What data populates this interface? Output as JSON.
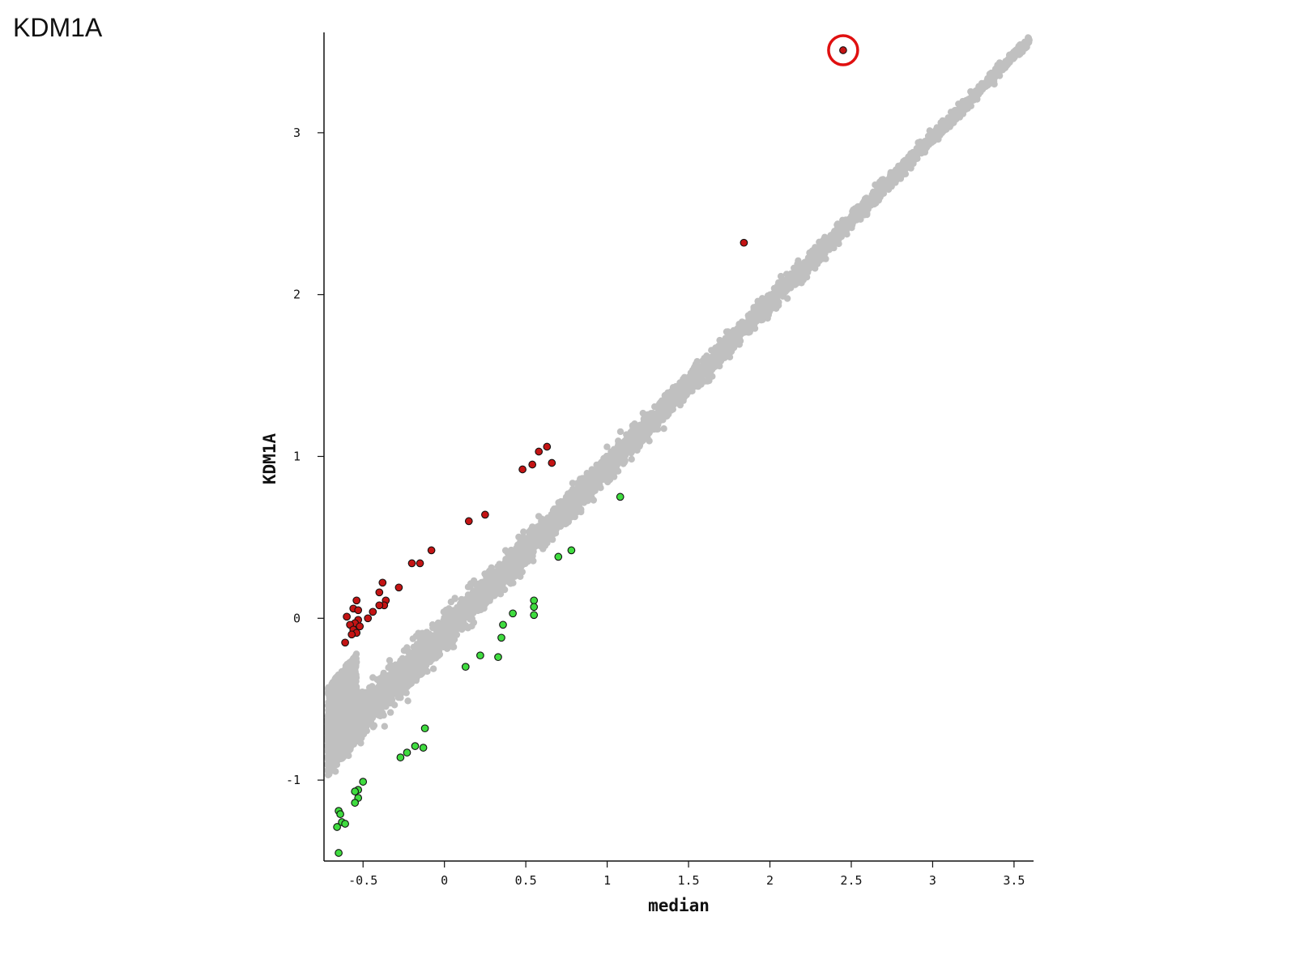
{
  "page": {
    "title": "KDM1A"
  },
  "chart_data": {
    "type": "scatter",
    "title": "",
    "xlabel": "median",
    "ylabel": "KDM1A",
    "xlim": [
      -0.74,
      3.62
    ],
    "ylim": [
      -1.5,
      3.62
    ],
    "x_ticks": [
      -0.5,
      0,
      0.5,
      1,
      1.5,
      2,
      2.5,
      3,
      3.5
    ],
    "x_tick_labels": [
      "-0.5",
      "0",
      "0.5",
      "1",
      "1.5",
      "2",
      "2.5",
      "3",
      "3.5"
    ],
    "y_ticks": [
      -1,
      0,
      1,
      2,
      3
    ],
    "y_tick_labels": [
      "-1",
      "0",
      "1",
      "2",
      "3"
    ],
    "grid": false,
    "legend": "none",
    "colors": {
      "background_points": "#c0c0c0",
      "up_points": "#c41414",
      "down_points": "#3fdc3f",
      "point_outline": "#111111",
      "highlight_circle": "#e01010"
    },
    "background_cloud": {
      "description_shown": "dense grey band of points along diagonal",
      "trend_start": [
        -0.7,
        -0.8
      ],
      "trend_end": [
        3.6,
        3.58
      ],
      "point_count": 5200
    },
    "series": [
      {
        "color_role": "up_points",
        "points": [
          [
            2.45,
            3.51
          ],
          [
            1.84,
            2.32
          ],
          [
            0.63,
            1.06
          ],
          [
            0.58,
            1.03
          ],
          [
            0.54,
            0.95
          ],
          [
            0.66,
            0.96
          ],
          [
            0.48,
            0.92
          ],
          [
            0.25,
            0.64
          ],
          [
            0.15,
            0.6
          ],
          [
            -0.08,
            0.42
          ],
          [
            -0.15,
            0.34
          ],
          [
            -0.2,
            0.34
          ],
          [
            -0.28,
            0.19
          ],
          [
            -0.38,
            0.22
          ],
          [
            -0.4,
            0.16
          ],
          [
            -0.36,
            0.11
          ],
          [
            -0.37,
            0.08
          ],
          [
            -0.4,
            0.08
          ],
          [
            -0.44,
            0.04
          ],
          [
            -0.47,
            0.0
          ],
          [
            -0.54,
            0.11
          ],
          [
            -0.56,
            0.06
          ],
          [
            -0.53,
            0.05
          ],
          [
            -0.6,
            0.01
          ],
          [
            -0.53,
            -0.01
          ],
          [
            -0.55,
            -0.03
          ],
          [
            -0.58,
            -0.04
          ],
          [
            -0.52,
            -0.05
          ],
          [
            -0.56,
            -0.07
          ],
          [
            -0.54,
            -0.09
          ],
          [
            -0.57,
            -0.1
          ],
          [
            -0.61,
            -0.15
          ]
        ]
      },
      {
        "color_role": "down_points",
        "points": [
          [
            1.08,
            0.75
          ],
          [
            0.78,
            0.42
          ],
          [
            0.7,
            0.38
          ],
          [
            0.55,
            0.11
          ],
          [
            0.55,
            0.07
          ],
          [
            0.55,
            0.02
          ],
          [
            0.42,
            0.03
          ],
          [
            0.36,
            -0.04
          ],
          [
            0.35,
            -0.12
          ],
          [
            0.33,
            -0.24
          ],
          [
            0.22,
            -0.23
          ],
          [
            0.13,
            -0.3
          ],
          [
            -0.12,
            -0.68
          ],
          [
            -0.13,
            -0.8
          ],
          [
            -0.18,
            -0.79
          ],
          [
            -0.23,
            -0.83
          ],
          [
            -0.27,
            -0.86
          ],
          [
            -0.5,
            -1.01
          ],
          [
            -0.53,
            -1.06
          ],
          [
            -0.55,
            -1.07
          ],
          [
            -0.53,
            -1.11
          ],
          [
            -0.55,
            -1.14
          ],
          [
            -0.65,
            -1.19
          ],
          [
            -0.64,
            -1.21
          ],
          [
            -0.63,
            -1.26
          ],
          [
            -0.61,
            -1.27
          ],
          [
            -0.66,
            -1.29
          ],
          [
            -0.65,
            -1.45
          ]
        ]
      }
    ],
    "annotations": [
      {
        "type": "circle",
        "center": [
          2.45,
          3.51
        ],
        "color_role": "highlight_circle"
      }
    ]
  }
}
